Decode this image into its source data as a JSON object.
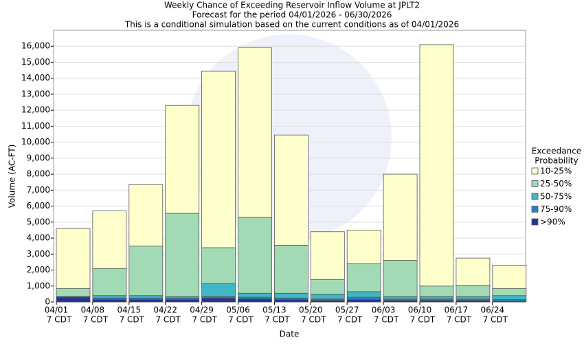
{
  "chart_data": {
    "type": "stacked_bar",
    "title": [
      "Weekly Chance of Exceeding Reservoir Inflow Volume at JPLT2",
      "Forecast for the period 04/01/2026 - 06/30/2026",
      "This is a conditional simulation based on the current conditions as of 04/01/2026"
    ],
    "x_label": "Date",
    "y_label": "Volume (AC-FT)",
    "categories": [
      "04/01",
      "04/08",
      "04/15",
      "04/22",
      "04/29",
      "05/06",
      "05/13",
      "05/20",
      "05/27",
      "06/03",
      "06/10",
      "06/17",
      "06/24"
    ],
    "category_sublabels": [
      "7 CDT",
      "7 CDT",
      "7 CDT",
      "7 CDT",
      "7 CDT",
      "7 CDT",
      "7 CDT",
      "7 CDT",
      "7 CDT",
      "7 CDT",
      "7 CDT",
      "7 CDT",
      "7 CDT"
    ],
    "legend_title": [
      "Exceedance",
      "Probability"
    ],
    "series": [
      {
        "name": ">90%",
        "color": "#253494",
        "values": [
          300,
          150,
          150,
          150,
          250,
          200,
          150,
          100,
          150,
          100,
          100,
          100,
          50
        ]
      },
      {
        "name": "75-90%",
        "color": "#2c7fb8",
        "values": [
          30,
          100,
          100,
          100,
          100,
          100,
          100,
          100,
          150,
          100,
          100,
          100,
          100
        ]
      },
      {
        "name": "50-75%",
        "color": "#41b6c4",
        "values": [
          20,
          150,
          150,
          100,
          800,
          250,
          300,
          300,
          350,
          150,
          150,
          150,
          250
        ]
      },
      {
        "name": "25-50%",
        "color": "#a1dab4",
        "values": [
          500,
          1700,
          3100,
          5200,
          2250,
          4750,
          3000,
          900,
          1750,
          2250,
          650,
          700,
          450
        ]
      },
      {
        "name": "10-25%",
        "color": "#ffffcc",
        "values": [
          3750,
          3600,
          3850,
          6750,
          11050,
          10600,
          6900,
          3000,
          2100,
          5400,
          15100,
          1700,
          1450
        ]
      }
    ],
    "ylim": [
      0,
      17000
    ],
    "yticks": [
      0,
      {
        "value": 1000,
        "label": "1,000"
      },
      {
        "value": 2000,
        "label": "2,000"
      },
      {
        "value": 3000,
        "label": "3,000"
      },
      {
        "value": 4000,
        "label": "4,000"
      },
      {
        "value": 5000,
        "label": "5,000"
      },
      {
        "value": 6000,
        "label": "6,000"
      },
      {
        "value": 7000,
        "label": "7,000"
      },
      {
        "value": 8000,
        "label": "8,000"
      },
      {
        "value": 9000,
        "label": "9,000"
      },
      {
        "value": 10000,
        "label": "10,000"
      },
      {
        "value": 11000,
        "label": "11,000"
      },
      {
        "value": 12000,
        "label": "12,000"
      },
      {
        "value": 13000,
        "label": "13,000"
      },
      {
        "value": 14000,
        "label": "14,000"
      },
      {
        "value": 15000,
        "label": "15,000"
      },
      {
        "value": 16000,
        "label": "16,000"
      }
    ],
    "grid": true
  }
}
